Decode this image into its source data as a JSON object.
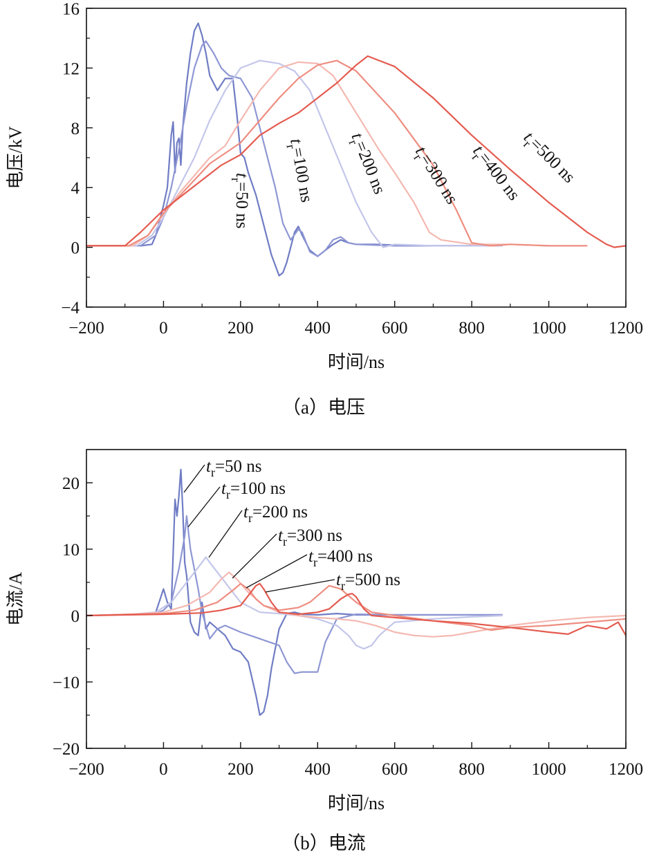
{
  "series_colors": [
    "#6f7cc4",
    "#8e97d4",
    "#c3c6ea",
    "#f4b8b0",
    "#ee8d80",
    "#e45b4f"
  ],
  "chart_data": [
    {
      "type": "line",
      "caption": "（a）电压",
      "xlabel": "时间/ns",
      "ylabel": "电压/kV",
      "xlim": [
        -200,
        1200
      ],
      "ylim": [
        -4,
        16
      ],
      "xticks": [
        -200,
        0,
        200,
        400,
        600,
        800,
        1000,
        1200
      ],
      "xtick_labels": [
        "−200",
        "0",
        "200",
        "400",
        "600",
        "800",
        "1000",
        "1200"
      ],
      "yticks": [
        -4,
        0,
        4,
        8,
        12,
        16
      ],
      "ytick_labels": [
        "−4",
        "0",
        "4",
        "8",
        "12",
        "16"
      ],
      "grid": false,
      "series": [
        {
          "name": "tr=50 ns",
          "label_main": "t",
          "label_sub": "r",
          "label_rest": "=50 ns",
          "label_angle": 90,
          "x": [
            -200,
            -60,
            -30,
            -20,
            -10,
            0,
            10,
            20,
            25,
            30,
            35,
            40,
            45,
            50,
            60,
            70,
            80,
            90,
            100,
            110,
            120,
            140,
            160,
            180,
            190,
            200,
            210,
            220,
            240,
            260,
            280,
            300,
            310,
            320,
            340,
            350,
            360,
            380,
            400,
            420,
            440,
            460,
            480,
            500,
            550,
            600,
            700,
            880
          ],
          "y": [
            0.1,
            0.1,
            0.2,
            0.8,
            1.8,
            2.8,
            4.0,
            7.5,
            8.4,
            5.0,
            7.0,
            7.3,
            5.5,
            8.0,
            11.0,
            13.0,
            14.5,
            15.0,
            14.2,
            13.0,
            11.5,
            10.5,
            11.3,
            11.3,
            9.0,
            6.3,
            6.0,
            5.0,
            3.5,
            1.5,
            -0.5,
            -1.9,
            -1.7,
            -1.0,
            1.0,
            1.4,
            0.8,
            -0.2,
            -0.6,
            -0.2,
            0.2,
            0.5,
            0.3,
            0.2,
            0.2,
            0.15,
            0.1,
            0.1
          ]
        },
        {
          "name": "tr=100 ns",
          "label_main": "t",
          "label_sub": "r",
          "label_rest": "=100 ns",
          "label_angle": 80,
          "x": [
            -200,
            -60,
            -20,
            0,
            20,
            40,
            60,
            80,
            100,
            110,
            130,
            150,
            170,
            200,
            230,
            260,
            290,
            310,
            330,
            350,
            360,
            380,
            400,
            420,
            440,
            460,
            480,
            500,
            550,
            600,
            700,
            880
          ],
          "y": [
            0.1,
            0.1,
            0.8,
            2.0,
            4.0,
            6.5,
            9.5,
            12.0,
            13.5,
            13.8,
            13.0,
            12.0,
            11.5,
            11.3,
            10.0,
            7.0,
            4.0,
            1.6,
            0.5,
            1.2,
            1.0,
            -0.3,
            -0.6,
            -0.2,
            0.5,
            0.7,
            0.3,
            0.2,
            0.15,
            0.1,
            0.1,
            0.1
          ]
        },
        {
          "name": "tr=200 ns",
          "label_main": "t",
          "label_sub": "r",
          "label_rest": "=200 ns",
          "label_angle": 68,
          "x": [
            -200,
            -70,
            -30,
            0,
            40,
            80,
            120,
            160,
            200,
            250,
            300,
            340,
            380,
            420,
            460,
            500,
            540,
            570,
            600,
            700,
            800,
            880
          ],
          "y": [
            0.1,
            0.1,
            0.8,
            2.0,
            4.0,
            6.0,
            8.5,
            10.5,
            12.0,
            12.5,
            12.3,
            11.8,
            10.5,
            8.0,
            5.5,
            3.0,
            1.0,
            0.0,
            0.2,
            0.1,
            0.1,
            0.1
          ]
        },
        {
          "name": "tr=300 ns",
          "label_main": "t",
          "label_sub": "r",
          "label_rest": "=300 ns",
          "label_angle": 58,
          "x": [
            -200,
            -80,
            -40,
            0,
            40,
            80,
            120,
            160,
            200,
            250,
            300,
            350,
            400,
            440,
            500,
            560,
            600,
            650,
            690,
            720,
            800,
            900,
            1000
          ],
          "y": [
            0.1,
            0.1,
            0.8,
            2.2,
            3.6,
            4.8,
            6.0,
            6.8,
            8.5,
            10.5,
            12.0,
            12.4,
            12.3,
            11.5,
            9.0,
            6.5,
            5.0,
            3.0,
            1.0,
            0.5,
            0.2,
            0.2,
            0.1
          ]
        },
        {
          "name": "tr=400 ns",
          "label_main": "t",
          "label_sub": "r",
          "label_rest": "=400 ns",
          "label_angle": 52,
          "x": [
            -200,
            -90,
            -40,
            0,
            40,
            80,
            120,
            160,
            200,
            250,
            300,
            350,
            400,
            450,
            500,
            600,
            700,
            760,
            800,
            850,
            900,
            1000,
            1100
          ],
          "y": [
            0.1,
            0.1,
            0.8,
            2.3,
            3.4,
            4.5,
            5.6,
            6.3,
            7.0,
            8.5,
            10.0,
            11.3,
            12.2,
            12.5,
            11.8,
            9.0,
            5.5,
            2.5,
            0.3,
            0.1,
            0.2,
            0.1,
            0.1
          ]
        },
        {
          "name": "tr=500 ns",
          "label_main": "t",
          "label_sub": "r",
          "label_rest": "=500 ns",
          "label_angle": 45,
          "x": [
            -200,
            -100,
            -60,
            0,
            50,
            100,
            150,
            200,
            250,
            300,
            350,
            400,
            450,
            500,
            530,
            560,
            600,
            700,
            800,
            900,
            1000,
            1100,
            1150,
            1170,
            1200
          ],
          "y": [
            0.1,
            0.1,
            1.0,
            2.5,
            3.5,
            4.5,
            5.5,
            6.2,
            7.5,
            8.3,
            9.0,
            10.0,
            11.0,
            12.2,
            12.8,
            12.5,
            12.1,
            10.0,
            7.5,
            5.2,
            3.0,
            1.0,
            0.2,
            0.0,
            0.1
          ]
        }
      ]
    },
    {
      "type": "line",
      "caption": "（b）电流",
      "xlabel": "时间/ns",
      "ylabel": "电流/A",
      "xlim": [
        -200,
        1200
      ],
      "ylim": [
        -20,
        25
      ],
      "xticks": [
        -200,
        0,
        200,
        400,
        600,
        800,
        1000,
        1200
      ],
      "xtick_labels": [
        "−200",
        "0",
        "200",
        "400",
        "600",
        "800",
        "1000",
        "1200"
      ],
      "yticks": [
        -20,
        -10,
        0,
        10,
        20
      ],
      "ytick_labels": [
        "−20",
        "−10",
        "0",
        "10",
        "20"
      ],
      "grid": false,
      "series": [
        {
          "name": "tr=50 ns",
          "label_main": "t",
          "label_sub": "r",
          "label_rest": "=50 ns",
          "x": [
            -200,
            -60,
            -20,
            0,
            10,
            20,
            30,
            35,
            40,
            45,
            50,
            55,
            60,
            70,
            80,
            90,
            100,
            110,
            120,
            140,
            160,
            180,
            200,
            220,
            240,
            250,
            260,
            270,
            280,
            300,
            320,
            340,
            360,
            400,
            450,
            500,
            600,
            700,
            880
          ],
          "y": [
            0,
            0.2,
            0.5,
            4.0,
            2.0,
            1.0,
            17.5,
            15.0,
            18.0,
            22.0,
            16.0,
            8.0,
            6.0,
            -1.0,
            -2.5,
            -3.0,
            2.0,
            -2.0,
            -1.0,
            -2.0,
            -3.0,
            -5.0,
            -5.5,
            -7.0,
            -12.0,
            -15.0,
            -14.5,
            -12.0,
            -8.0,
            -2.0,
            0.3,
            0.5,
            0.2,
            0.1,
            0.3,
            0.1,
            0.1,
            0.1,
            0.1
          ]
        },
        {
          "name": "tr=100 ns",
          "label_main": "t",
          "label_sub": "r",
          "label_rest": "=100 ns",
          "x": [
            -200,
            -60,
            -20,
            0,
            20,
            40,
            55,
            60,
            65,
            70,
            80,
            90,
            100,
            110,
            120,
            140,
            160,
            200,
            250,
            300,
            320,
            340,
            360,
            400,
            420,
            450,
            500,
            600,
            700,
            880
          ],
          "y": [
            0,
            0.2,
            0.3,
            0.8,
            2.0,
            7.0,
            12.0,
            15.0,
            12.5,
            10.0,
            7.0,
            4.0,
            0.5,
            -1.5,
            -3.5,
            -2.0,
            -1.5,
            -2.5,
            -3.5,
            -4.5,
            -7.0,
            -8.7,
            -8.5,
            -8.5,
            -4.0,
            -0.5,
            0.2,
            0.1,
            0.1,
            0.1
          ]
        },
        {
          "name": "tr=200 ns",
          "label_main": "t",
          "label_sub": "r",
          "label_rest": "=200 ns",
          "x": [
            -200,
            -80,
            -20,
            20,
            60,
            100,
            110,
            120,
            140,
            160,
            180,
            200,
            250,
            300,
            350,
            400,
            450,
            480,
            500,
            520,
            540,
            560,
            600,
            700,
            800,
            880
          ],
          "y": [
            0,
            0.2,
            0.5,
            2.0,
            5.0,
            8.0,
            8.8,
            8.0,
            6.5,
            5.0,
            3.5,
            2.0,
            0.5,
            0.3,
            0.0,
            -0.5,
            -1.5,
            -3.0,
            -4.5,
            -5.0,
            -4.5,
            -3.0,
            -1.0,
            -0.5,
            -0.2,
            0.0
          ]
        },
        {
          "name": "tr=300 ns",
          "label_main": "t",
          "label_sub": "r",
          "label_rest": "=300 ns",
          "x": [
            -200,
            -80,
            0,
            60,
            120,
            150,
            170,
            190,
            220,
            260,
            300,
            350,
            400,
            450,
            500,
            550,
            600,
            650,
            700,
            750,
            800,
            900,
            1000,
            1100,
            1200
          ],
          "y": [
            0,
            0.2,
            0.5,
            1.5,
            3.5,
            5.5,
            6.5,
            5.5,
            3.5,
            1.5,
            0.5,
            0.0,
            -0.3,
            -0.5,
            -0.8,
            -1.5,
            -2.5,
            -3.0,
            -3.2,
            -3.0,
            -2.5,
            -1.5,
            -0.8,
            -0.3,
            0.0
          ]
        },
        {
          "name": "tr=400 ns",
          "label_main": "t",
          "label_sub": "r",
          "label_rest": "=400 ns",
          "x": [
            -200,
            -80,
            0,
            80,
            140,
            180,
            200,
            220,
            240,
            260,
            300,
            350,
            380,
            400,
            430,
            460,
            500,
            540,
            600,
            700,
            800,
            850,
            900,
            1000,
            1100,
            1200
          ],
          "y": [
            0,
            0.2,
            0.3,
            0.8,
            2.0,
            3.8,
            4.8,
            4.0,
            2.5,
            1.5,
            0.8,
            1.2,
            2.0,
            3.0,
            4.5,
            4.0,
            2.0,
            0.5,
            0.0,
            -0.8,
            -1.5,
            -2.2,
            -1.8,
            -1.5,
            -1.0,
            -0.5
          ]
        },
        {
          "name": "tr=500 ns",
          "label_main": "t",
          "label_sub": "r",
          "label_rest": "=500 ns",
          "x": [
            -200,
            -100,
            0,
            100,
            150,
            200,
            220,
            240,
            250,
            260,
            280,
            300,
            350,
            400,
            430,
            460,
            480,
            490,
            500,
            520,
            540,
            600,
            700,
            800,
            900,
            1000,
            1050,
            1100,
            1150,
            1180,
            1200
          ],
          "y": [
            0,
            0.1,
            0.2,
            0.4,
            0.8,
            1.5,
            3.0,
            4.5,
            4.8,
            4.0,
            2.0,
            0.5,
            0.2,
            0.5,
            1.0,
            2.5,
            3.2,
            3.3,
            2.8,
            1.0,
            0.0,
            -0.3,
            -0.8,
            -1.2,
            -1.8,
            -2.5,
            -2.8,
            -1.5,
            -2.0,
            -1.0,
            -3.0
          ]
        }
      ]
    }
  ]
}
